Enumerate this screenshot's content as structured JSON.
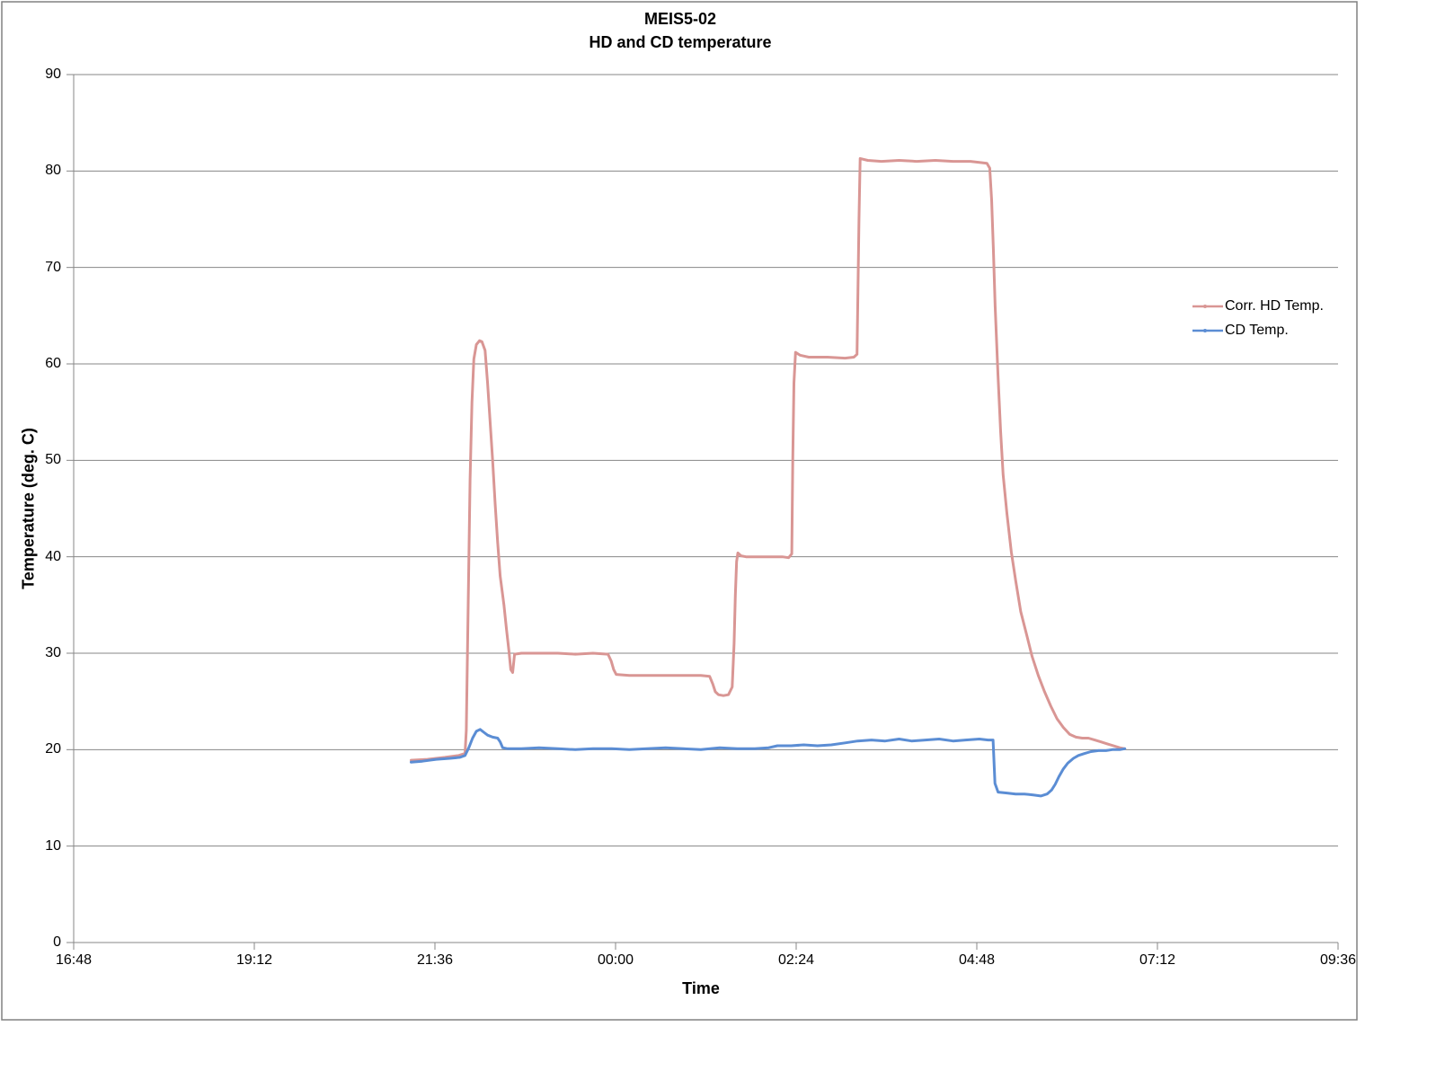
{
  "frame": {
    "border_color": "#808080",
    "background": "#ffffff"
  },
  "chart_data": {
    "type": "line",
    "title": "MEIS5-02",
    "subtitle": "HD and CD temperature",
    "xlabel": "Time",
    "ylabel": "Temperature (deg. C)",
    "grid": "horizontal",
    "grid_color": "#878787",
    "x_axis": {
      "note": "time of day; numeric values are minutes after 16:48",
      "min": 0,
      "max": 1008,
      "tick_minutes": [
        0,
        144,
        288,
        432,
        576,
        720,
        864,
        1008
      ],
      "tick_labels": [
        "16:48",
        "19:12",
        "21:36",
        "00:00",
        "02:24",
        "04:48",
        "07:12",
        "09:36"
      ]
    },
    "y_axis": {
      "min": 0,
      "max": 90,
      "tick_step": 10,
      "tick_labels": [
        "0",
        "10",
        "20",
        "30",
        "40",
        "50",
        "60",
        "70",
        "80",
        "90"
      ]
    },
    "legend": {
      "position": "right",
      "entries": [
        {
          "label": "Corr. HD Temp.",
          "color": "#d99694"
        },
        {
          "label": "CD Temp.",
          "color": "#5b8dd4"
        }
      ]
    },
    "series": [
      {
        "name": "Corr. HD Temp.",
        "color": "#d99694",
        "points": [
          [
            269,
            18.9
          ],
          [
            282,
            19.0
          ],
          [
            296,
            19.2
          ],
          [
            307,
            19.4
          ],
          [
            312,
            19.6
          ],
          [
            313,
            22.0
          ],
          [
            314.5,
            35.0
          ],
          [
            316,
            48.0
          ],
          [
            317.5,
            56.0
          ],
          [
            319,
            60.5
          ],
          [
            321,
            62.0
          ],
          [
            323.5,
            62.4
          ],
          [
            325.5,
            62.3
          ],
          [
            328,
            61.4
          ],
          [
            330,
            58.0
          ],
          [
            332,
            54.0
          ],
          [
            334,
            50.0
          ],
          [
            336,
            45.5
          ],
          [
            338,
            41.5
          ],
          [
            340,
            38.0
          ],
          [
            343,
            35.0
          ],
          [
            345,
            32.5
          ],
          [
            347,
            30.2
          ],
          [
            348.5,
            28.3
          ],
          [
            350,
            28.0
          ],
          [
            351.5,
            29.9
          ],
          [
            357,
            30.0
          ],
          [
            371,
            30.0
          ],
          [
            386,
            30.0
          ],
          [
            400,
            29.9
          ],
          [
            414,
            30.0
          ],
          [
            426,
            29.9
          ],
          [
            428.5,
            29.2
          ],
          [
            430.5,
            28.3
          ],
          [
            432.5,
            27.8
          ],
          [
            443,
            27.7
          ],
          [
            457,
            27.7
          ],
          [
            472,
            27.7
          ],
          [
            486,
            27.7
          ],
          [
            500,
            27.7
          ],
          [
            507,
            27.6
          ],
          [
            509.5,
            26.8
          ],
          [
            511.5,
            26.0
          ],
          [
            514,
            25.7
          ],
          [
            518,
            25.6
          ],
          [
            522,
            25.7
          ],
          [
            525,
            26.5
          ],
          [
            526.5,
            31.0
          ],
          [
            527.5,
            36.0
          ],
          [
            528.5,
            39.5
          ],
          [
            529.5,
            40.4
          ],
          [
            532,
            40.1
          ],
          [
            536,
            40.0
          ],
          [
            550,
            40.0
          ],
          [
            565,
            40.0
          ],
          [
            570,
            39.9
          ],
          [
            572.5,
            40.3
          ],
          [
            573.3,
            50.0
          ],
          [
            574.2,
            58.0
          ],
          [
            575.5,
            61.2
          ],
          [
            579,
            60.9
          ],
          [
            586,
            60.7
          ],
          [
            601,
            60.7
          ],
          [
            615,
            60.6
          ],
          [
            622,
            60.7
          ],
          [
            624.5,
            61.0
          ],
          [
            625.3,
            68.0
          ],
          [
            626.1,
            75.0
          ],
          [
            627,
            81.3
          ],
          [
            633,
            81.1
          ],
          [
            644,
            81.0
          ],
          [
            658,
            81.1
          ],
          [
            672,
            81.0
          ],
          [
            687,
            81.1
          ],
          [
            701,
            81.0
          ],
          [
            715,
            81.0
          ],
          [
            722,
            80.9
          ],
          [
            728,
            80.8
          ],
          [
            730.3,
            80.3
          ],
          [
            731.8,
            77.0
          ],
          [
            733.2,
            72.0
          ],
          [
            734.6,
            66.0
          ],
          [
            736.8,
            59.0
          ],
          [
            739,
            53.0
          ],
          [
            741,
            48.5
          ],
          [
            744,
            44.5
          ],
          [
            747.5,
            40.5
          ],
          [
            751,
            37.5
          ],
          [
            755,
            34.3
          ],
          [
            760,
            31.8
          ],
          [
            764,
            29.7
          ],
          [
            769,
            27.7
          ],
          [
            774,
            26.0
          ],
          [
            779,
            24.5
          ],
          [
            784,
            23.2
          ],
          [
            789,
            22.3
          ],
          [
            794,
            21.6
          ],
          [
            799,
            21.3
          ],
          [
            804,
            21.2
          ],
          [
            809,
            21.2
          ],
          [
            814,
            21.0
          ],
          [
            819,
            20.8
          ],
          [
            824,
            20.6
          ],
          [
            829,
            20.4
          ],
          [
            834,
            20.2
          ],
          [
            838,
            20.1
          ]
        ]
      },
      {
        "name": "CD Temp.",
        "color": "#5b8dd4",
        "points": [
          [
            269,
            18.7
          ],
          [
            278,
            18.8
          ],
          [
            289,
            19.0
          ],
          [
            300,
            19.1
          ],
          [
            308,
            19.2
          ],
          [
            312,
            19.4
          ],
          [
            315,
            20.2
          ],
          [
            318,
            21.2
          ],
          [
            321,
            21.9
          ],
          [
            324,
            22.1
          ],
          [
            327,
            21.8
          ],
          [
            330,
            21.5
          ],
          [
            334,
            21.3
          ],
          [
            338,
            21.2
          ],
          [
            340,
            20.8
          ],
          [
            342,
            20.2
          ],
          [
            346,
            20.1
          ],
          [
            357,
            20.1
          ],
          [
            371,
            20.2
          ],
          [
            386,
            20.1
          ],
          [
            400,
            20.0
          ],
          [
            414,
            20.1
          ],
          [
            429,
            20.1
          ],
          [
            443,
            20.0
          ],
          [
            457,
            20.1
          ],
          [
            472,
            20.2
          ],
          [
            486,
            20.1
          ],
          [
            500,
            20.0
          ],
          [
            515,
            20.2
          ],
          [
            529,
            20.1
          ],
          [
            543,
            20.1
          ],
          [
            554,
            20.2
          ],
          [
            561,
            20.4
          ],
          [
            572,
            20.4
          ],
          [
            582,
            20.5
          ],
          [
            593,
            20.4
          ],
          [
            604,
            20.5
          ],
          [
            615,
            20.7
          ],
          [
            625,
            20.9
          ],
          [
            636,
            21.0
          ],
          [
            647,
            20.9
          ],
          [
            658,
            21.1
          ],
          [
            668,
            20.9
          ],
          [
            679,
            21.0
          ],
          [
            690,
            21.1
          ],
          [
            701,
            20.9
          ],
          [
            711,
            21.0
          ],
          [
            722,
            21.1
          ],
          [
            729,
            21.0
          ],
          [
            733,
            21.0
          ],
          [
            734.5,
            16.5
          ],
          [
            737,
            15.6
          ],
          [
            744,
            15.5
          ],
          [
            751,
            15.4
          ],
          [
            758,
            15.4
          ],
          [
            765,
            15.3
          ],
          [
            771,
            15.2
          ],
          [
            776,
            15.4
          ],
          [
            779.5,
            15.8
          ],
          [
            782.5,
            16.4
          ],
          [
            785.5,
            17.2
          ],
          [
            789,
            18.0
          ],
          [
            792.5,
            18.6
          ],
          [
            797,
            19.1
          ],
          [
            801,
            19.4
          ],
          [
            806,
            19.6
          ],
          [
            811,
            19.8
          ],
          [
            817,
            19.9
          ],
          [
            823,
            19.9
          ],
          [
            828,
            20.0
          ],
          [
            834,
            20.0
          ],
          [
            838,
            20.1
          ]
        ]
      }
    ]
  }
}
